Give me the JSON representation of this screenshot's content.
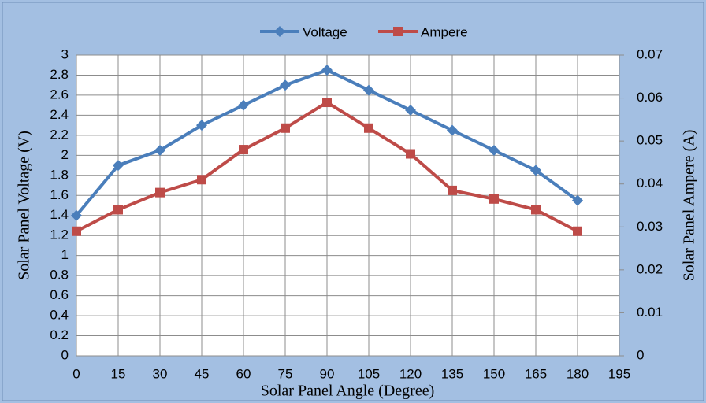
{
  "chart_data": {
    "type": "line",
    "x": [
      0,
      15,
      30,
      45,
      60,
      75,
      90,
      105,
      120,
      135,
      150,
      165,
      180
    ],
    "series": [
      {
        "name": "Voltage",
        "color": "#4a7ebb",
        "marker": "diamond",
        "values": [
          1.4,
          1.9,
          2.05,
          2.3,
          2.5,
          2.7,
          2.85,
          2.65,
          2.45,
          2.25,
          2.05,
          1.85,
          1.55
        ]
      },
      {
        "name": "Ampere",
        "color": "#be4b48",
        "marker": "square",
        "axis": "y2",
        "values": [
          0.029,
          0.034,
          0.038,
          0.041,
          0.048,
          0.053,
          0.059,
          0.053,
          0.047,
          0.0385,
          0.0365,
          0.034,
          0.029
        ]
      }
    ],
    "xlabel": "Solar Panel Angle (Degree)",
    "ylabel": "Solar Panel Voltage (V)",
    "y2label": "Solar Panel Ampere (A)",
    "xlim": [
      0,
      195
    ],
    "xticks": [
      0,
      15,
      30,
      45,
      60,
      75,
      90,
      105,
      120,
      135,
      150,
      165,
      180,
      195
    ],
    "ylim": [
      0,
      3
    ],
    "yticks": [
      0,
      0.2,
      0.4,
      0.6,
      0.8,
      1,
      1.2,
      1.4,
      1.6,
      1.8,
      2,
      2.2,
      2.4,
      2.6,
      2.8,
      3
    ],
    "y2lim": [
      0,
      0.07
    ],
    "y2ticks": [
      0,
      0.01,
      0.02,
      0.03,
      0.04,
      0.05,
      0.06,
      0.07
    ],
    "grid": true,
    "legend": "top"
  }
}
